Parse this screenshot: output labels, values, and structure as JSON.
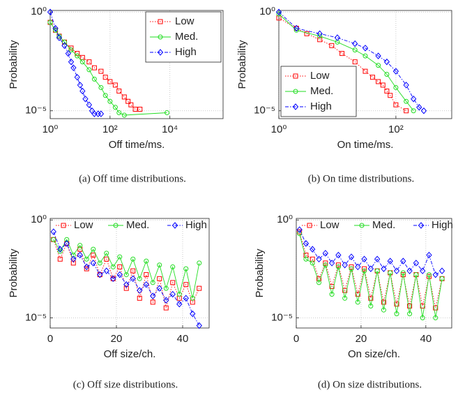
{
  "chart_data": [
    {
      "type": "line",
      "caption": "(a) Off time distributions.",
      "x_label": "Off time/ms.",
      "y_label": "Probability",
      "xscale": "log",
      "yscale": "log",
      "grid": true,
      "legend": "upper right",
      "xlim": [
        1,
        600000
      ],
      "ylim": [
        4e-06,
        1.2
      ],
      "xticks": [
        {
          "value": 1,
          "label": "10⁰"
        },
        {
          "value": 100,
          "label": "10²"
        },
        {
          "value": 10000,
          "label": "10⁴"
        }
      ],
      "yticks": [
        {
          "value": 1,
          "label": "10⁰"
        },
        {
          "value": 1e-05,
          "label": "10⁻⁵"
        }
      ],
      "series": [
        {
          "name": "Low",
          "color": "#ff0000",
          "marker": "square",
          "dash": "dotted",
          "x": [
            1,
            1.5,
            2,
            3,
            5,
            8,
            12,
            20,
            30,
            50,
            70,
            100,
            150,
            200,
            300,
            400,
            500,
            700,
            1000
          ],
          "values": [
            0.3,
            0.12,
            0.06,
            0.03,
            0.015,
            0.008,
            0.005,
            0.003,
            0.0015,
            0.001,
            0.0005,
            0.0003,
            0.0002,
            0.0001,
            5e-05,
            3e-05,
            2e-05,
            1.2e-05,
            1.2e-05
          ]
        },
        {
          "name": "Med.",
          "color": "#22dd22",
          "marker": "circle",
          "dash": "solid",
          "x": [
            1,
            1.5,
            2,
            3,
            5,
            8,
            12,
            20,
            30,
            50,
            70,
            100,
            150,
            200,
            300,
            8000
          ],
          "values": [
            0.3,
            0.12,
            0.06,
            0.03,
            0.012,
            0.006,
            0.003,
            0.0012,
            0.0004,
            0.00015,
            6e-05,
            3e-05,
            1.5e-05,
            8e-06,
            6e-06,
            8e-06
          ]
        },
        {
          "name": "High",
          "color": "#0000ff",
          "marker": "diamond",
          "dash": "dashdot",
          "x": [
            1,
            1.5,
            2,
            3,
            4,
            5,
            6,
            8,
            10,
            12,
            15,
            20,
            25,
            30,
            40,
            50
          ],
          "values": [
            1,
            0.15,
            0.05,
            0.02,
            0.008,
            0.003,
            0.0015,
            0.0005,
            0.0002,
            0.0001,
            4e-05,
            2e-05,
            1e-05,
            7e-06,
            7e-06,
            7e-06
          ]
        }
      ]
    },
    {
      "type": "line",
      "caption": "(b) On time distributions.",
      "x_label": "On time/ms.",
      "y_label": "Probability",
      "xscale": "log",
      "yscale": "log",
      "grid": true,
      "legend": "lower left",
      "xlim": [
        1,
        900
      ],
      "ylim": [
        4e-06,
        1.2
      ],
      "xticks": [
        {
          "value": 1,
          "label": "10⁰"
        },
        {
          "value": 100,
          "label": "10²"
        }
      ],
      "yticks": [
        {
          "value": 1,
          "label": "10⁰"
        },
        {
          "value": 1e-05,
          "label": "10⁻⁵"
        }
      ],
      "series": [
        {
          "name": "Low",
          "color": "#ff0000",
          "marker": "square",
          "dash": "dotted",
          "x": [
            1,
            2,
            3,
            5,
            8,
            12,
            20,
            30,
            40,
            50,
            60,
            70,
            80,
            100,
            150
          ],
          "values": [
            0.5,
            0.15,
            0.08,
            0.04,
            0.02,
            0.008,
            0.003,
            0.001,
            0.0005,
            0.0003,
            0.0002,
            0.0001,
            6e-05,
            2e-05,
            1e-05
          ]
        },
        {
          "name": "Med.",
          "color": "#22dd22",
          "marker": "circle",
          "dash": "solid",
          "x": [
            1,
            2,
            5,
            10,
            20,
            30,
            50,
            70,
            100,
            150,
            200
          ],
          "values": [
            0.8,
            0.12,
            0.06,
            0.03,
            0.012,
            0.006,
            0.002,
            0.0007,
            0.00015,
            3e-05,
            1e-05
          ]
        },
        {
          "name": "High",
          "color": "#0000ff",
          "marker": "diamond",
          "dash": "dashdot",
          "x": [
            1,
            2,
            5,
            10,
            20,
            30,
            50,
            70,
            100,
            150,
            200,
            250,
            300
          ],
          "values": [
            1,
            0.15,
            0.08,
            0.05,
            0.025,
            0.015,
            0.006,
            0.003,
            0.001,
            0.0002,
            4e-05,
            1.5e-05,
            1e-05
          ]
        }
      ]
    },
    {
      "type": "line",
      "caption": "(c) Off size distributions.",
      "x_label": "Off size/ch.",
      "y_label": "Probability",
      "xscale": "linear",
      "yscale": "log",
      "grid": true,
      "legend": "top",
      "xlim": [
        0,
        48
      ],
      "ylim": [
        3e-06,
        1.2
      ],
      "xticks": [
        0,
        20,
        40
      ],
      "yticks": [
        {
          "value": 1,
          "label": "10⁰"
        },
        {
          "value": 1e-05,
          "label": "10⁻⁵"
        }
      ],
      "x": [
        1,
        3,
        5,
        7,
        9,
        11,
        13,
        15,
        17,
        19,
        21,
        23,
        25,
        27,
        29,
        31,
        33,
        35,
        37,
        39,
        41,
        43,
        45
      ],
      "series": [
        {
          "name": "Low",
          "color": "#ff0000",
          "marker": "square",
          "dash": "dotted",
          "values": [
            0.1,
            0.01,
            0.063,
            0.0063,
            0.032,
            0.0032,
            0.016,
            0.0016,
            0.01,
            0.001,
            0.004,
            0.00032,
            0.0025,
            0.0001,
            0.0016,
            6.3e-05,
            0.001,
            3.2e-05,
            0.00063,
            0.0001,
            0.0005,
            6.3e-05,
            0.00032
          ]
        },
        {
          "name": "Med.",
          "color": "#22dd22",
          "marker": "circle",
          "dash": "solid",
          "values": [
            0.1,
            0.025,
            0.1,
            0.016,
            0.05,
            0.01,
            0.032,
            0.0063,
            0.02,
            0.004,
            0.013,
            0.0016,
            0.01,
            0.001,
            0.0079,
            0.00063,
            0.005,
            0.00032,
            0.004,
            0.00016,
            0.0032,
            0.0001,
            0.0063
          ]
        },
        {
          "name": "High",
          "color": "#0000ff",
          "marker": "diamond",
          "dash": "dashdot",
          "values": [
            0.25,
            0.032,
            0.063,
            0.01,
            0.016,
            0.004,
            0.0063,
            0.0016,
            0.0025,
            0.001,
            0.0016,
            0.0005,
            0.001,
            0.00025,
            0.0005,
            0.00013,
            0.00032,
            7.9e-05,
            0.00016,
            5e-05,
            0.0001,
            1.6e-05,
            4e-06
          ]
        }
      ]
    },
    {
      "type": "line",
      "caption": "(d) On size distributions.",
      "x_label": "On size/ch.",
      "y_label": "Probability",
      "xscale": "linear",
      "yscale": "log",
      "grid": true,
      "legend": "top",
      "xlim": [
        0,
        48
      ],
      "ylim": [
        3e-06,
        1.2
      ],
      "xticks": [
        0,
        20,
        40
      ],
      "yticks": [
        {
          "value": 1,
          "label": "10⁰"
        },
        {
          "value": 1e-05,
          "label": "10⁻⁵"
        }
      ],
      "x": [
        1,
        3,
        5,
        7,
        9,
        11,
        13,
        15,
        17,
        19,
        21,
        23,
        25,
        27,
        29,
        31,
        33,
        35,
        37,
        39,
        41,
        43,
        45
      ],
      "series": [
        {
          "name": "Low",
          "color": "#ff0000",
          "marker": "square",
          "dash": "dotted",
          "values": [
            0.25,
            0.016,
            0.01,
            0.001,
            0.0063,
            0.0004,
            0.005,
            0.00025,
            0.004,
            0.00016,
            0.0032,
            0.0001,
            0.0025,
            6.3e-05,
            0.002,
            5e-05,
            0.0016,
            4e-05,
            0.0016,
            4e-05,
            0.0013,
            3.2e-05,
            0.001
          ]
        },
        {
          "name": "Med.",
          "color": "#22dd22",
          "marker": "circle",
          "dash": "solid",
          "values": [
            0.2,
            0.01,
            0.0063,
            0.00063,
            0.005,
            0.00016,
            0.004,
            0.0001,
            0.0032,
            6.3e-05,
            0.0025,
            4e-05,
            0.0025,
            2.5e-05,
            0.002,
            1.6e-05,
            0.002,
            1.6e-05,
            0.0016,
            1e-05,
            0.0016,
            1e-05,
            0.001
          ]
        },
        {
          "name": "High",
          "color": "#0000ff",
          "marker": "diamond",
          "dash": "dashdot",
          "values": [
            0.32,
            0.063,
            0.032,
            0.01,
            0.02,
            0.0063,
            0.016,
            0.005,
            0.013,
            0.004,
            0.01,
            0.0032,
            0.01,
            0.0032,
            0.0079,
            0.0025,
            0.0079,
            0.0025,
            0.0063,
            0.0025,
            0.016,
            0.0016,
            0.0025
          ]
        }
      ]
    }
  ]
}
